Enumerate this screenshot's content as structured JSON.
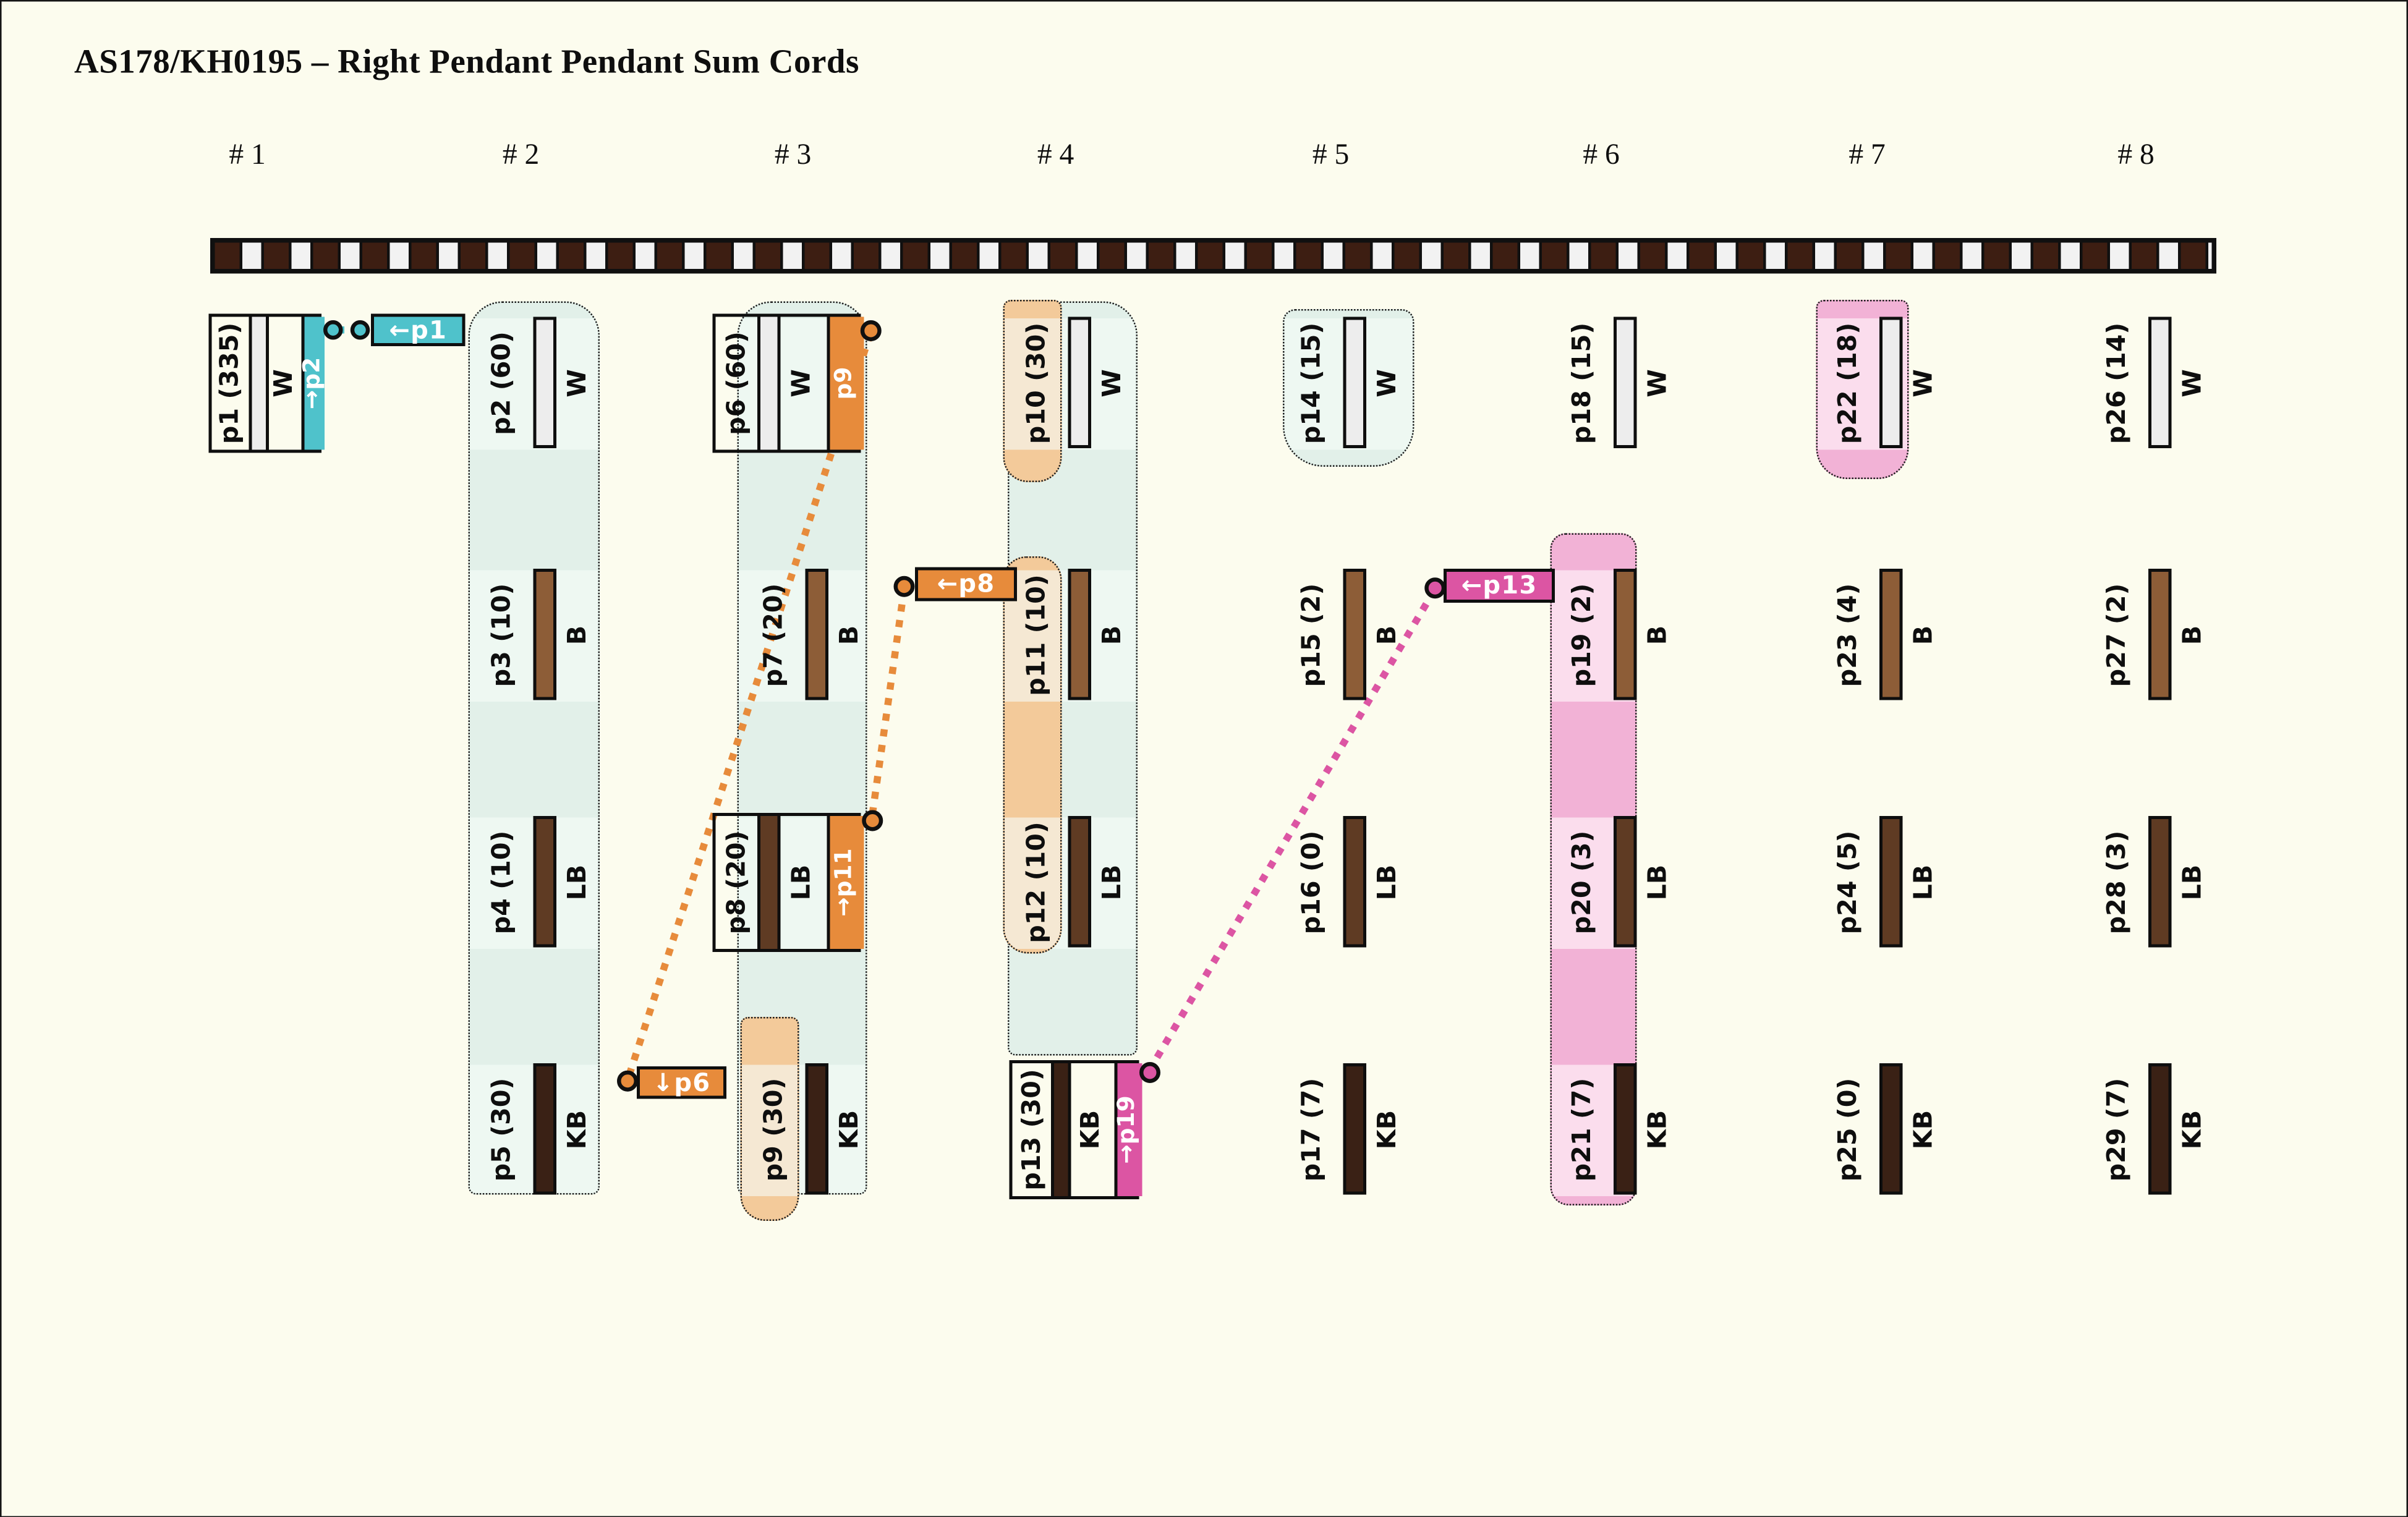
{
  "title": "AS178/KH0195 – Right Pendant Pendant Sum Cords",
  "groups": [
    {
      "num": 1,
      "label": "# 1"
    },
    {
      "num": 2,
      "label": "# 2"
    },
    {
      "num": 3,
      "label": "# 3"
    },
    {
      "num": 4,
      "label": "# 4"
    },
    {
      "num": 5,
      "label": "# 5"
    },
    {
      "num": 6,
      "label": "# 6"
    },
    {
      "num": 7,
      "label": "# 7"
    },
    {
      "num": 8,
      "label": "# 8"
    }
  ],
  "rows": [
    "W",
    "B",
    "LB",
    "KB"
  ],
  "colors": {
    "background": "#fcfcee",
    "ink": "#0e0e0e",
    "teal": "#4fc2cb",
    "orange": "#e78b3b",
    "magenta": "#dc55a3",
    "mint_base": "#e2f0e9",
    "mint_light": "#eef8f2",
    "tan_base": "#f3ca9a",
    "tan_light": "#f5e8d3",
    "pink_base": "#f2b2d6",
    "pink_light": "#fbdded",
    "bar_W": "#ededed",
    "bar_B": "#8d5d37",
    "bar_LB": "#5f3b23",
    "bar_KB": "#3a2115",
    "primary_dark": "#3d1e12",
    "primary_light": "#f2f2f2"
  },
  "pendants": [
    {
      "id": "p1",
      "group": 1,
      "row": "W",
      "label": "p1 (335)",
      "value": 335,
      "letter": "W",
      "boxed": true,
      "extra": {
        "color": "teal",
        "text": "→p2"
      }
    },
    {
      "id": "p2",
      "group": 2,
      "row": "W",
      "label": "p2 (60)",
      "value": 60,
      "letter": "W"
    },
    {
      "id": "p3",
      "group": 2,
      "row": "B",
      "label": "p3 (10)",
      "value": 10,
      "letter": "B"
    },
    {
      "id": "p4",
      "group": 2,
      "row": "LB",
      "label": "p4 (10)",
      "value": 10,
      "letter": "LB"
    },
    {
      "id": "p5",
      "group": 2,
      "row": "KB",
      "label": "p5 (30)",
      "value": 30,
      "letter": "KB"
    },
    {
      "id": "p6",
      "group": 3,
      "row": "W",
      "label": "p6 (60)",
      "value": 60,
      "letter": "W",
      "boxed": true,
      "extra": {
        "color": "orange",
        "text": "p9"
      }
    },
    {
      "id": "p7",
      "group": 3,
      "row": "B",
      "label": "p7 (20)",
      "value": 20,
      "letter": "B"
    },
    {
      "id": "p8",
      "group": 3,
      "row": "LB",
      "label": "p8 (20)",
      "value": 20,
      "letter": "LB",
      "boxed": true,
      "extra": {
        "color": "orange",
        "text": "→p11"
      }
    },
    {
      "id": "p9",
      "group": 3,
      "row": "KB",
      "label": "p9 (30)",
      "value": 30,
      "letter": "KB"
    },
    {
      "id": "p10",
      "group": 4,
      "row": "W",
      "label": "p10 (30)",
      "value": 30,
      "letter": "W"
    },
    {
      "id": "p11",
      "group": 4,
      "row": "B",
      "label": "p11 (10)",
      "value": 10,
      "letter": "B"
    },
    {
      "id": "p12",
      "group": 4,
      "row": "LB",
      "label": "p12 (10)",
      "value": 10,
      "letter": "LB"
    },
    {
      "id": "p13",
      "group": 4,
      "row": "KB",
      "label": "p13 (30)",
      "value": 30,
      "letter": "KB",
      "boxed": true,
      "extra": {
        "color": "magenta",
        "text": "→p19"
      }
    },
    {
      "id": "p14",
      "group": 5,
      "row": "W",
      "label": "p14 (15)",
      "value": 15,
      "letter": "W"
    },
    {
      "id": "p15",
      "group": 5,
      "row": "B",
      "label": "p15 (2)",
      "value": 2,
      "letter": "B"
    },
    {
      "id": "p16",
      "group": 5,
      "row": "LB",
      "label": "p16 (0)",
      "value": 0,
      "letter": "LB"
    },
    {
      "id": "p17",
      "group": 5,
      "row": "KB",
      "label": "p17 (7)",
      "value": 7,
      "letter": "KB"
    },
    {
      "id": "p18",
      "group": 6,
      "row": "W",
      "label": "p18 (15)",
      "value": 15,
      "letter": "W"
    },
    {
      "id": "p19",
      "group": 6,
      "row": "B",
      "label": "p19 (2)",
      "value": 2,
      "letter": "B"
    },
    {
      "id": "p20",
      "group": 6,
      "row": "LB",
      "label": "p20 (3)",
      "value": 3,
      "letter": "LB"
    },
    {
      "id": "p21",
      "group": 6,
      "row": "KB",
      "label": "p21 (7)",
      "value": 7,
      "letter": "KB"
    },
    {
      "id": "p22",
      "group": 7,
      "row": "W",
      "label": "p22 (18)",
      "value": 18,
      "letter": "W"
    },
    {
      "id": "p23",
      "group": 7,
      "row": "B",
      "label": "p23 (4)",
      "value": 4,
      "letter": "B"
    },
    {
      "id": "p24",
      "group": 7,
      "row": "LB",
      "label": "p24 (5)",
      "value": 5,
      "letter": "LB"
    },
    {
      "id": "p25",
      "group": 7,
      "row": "KB",
      "label": "p25 (0)",
      "value": 0,
      "letter": "KB"
    },
    {
      "id": "p26",
      "group": 8,
      "row": "W",
      "label": "p26 (14)",
      "value": 14,
      "letter": "W"
    },
    {
      "id": "p27",
      "group": 8,
      "row": "B",
      "label": "p27 (2)",
      "value": 2,
      "letter": "B"
    },
    {
      "id": "p28",
      "group": 8,
      "row": "LB",
      "label": "p28 (3)",
      "value": 3,
      "letter": "LB"
    },
    {
      "id": "p29",
      "group": 8,
      "row": "KB",
      "label": "p29 (7)",
      "value": 7,
      "letter": "KB"
    }
  ],
  "connector_labels": [
    {
      "id": "ref-p1",
      "text": "←p1",
      "color": "teal"
    },
    {
      "id": "ref-p6",
      "text": "↓p6",
      "color": "orange"
    },
    {
      "id": "ref-p8",
      "text": "←p8",
      "color": "orange"
    },
    {
      "id": "ref-p13",
      "text": "←p13",
      "color": "magenta"
    }
  ]
}
